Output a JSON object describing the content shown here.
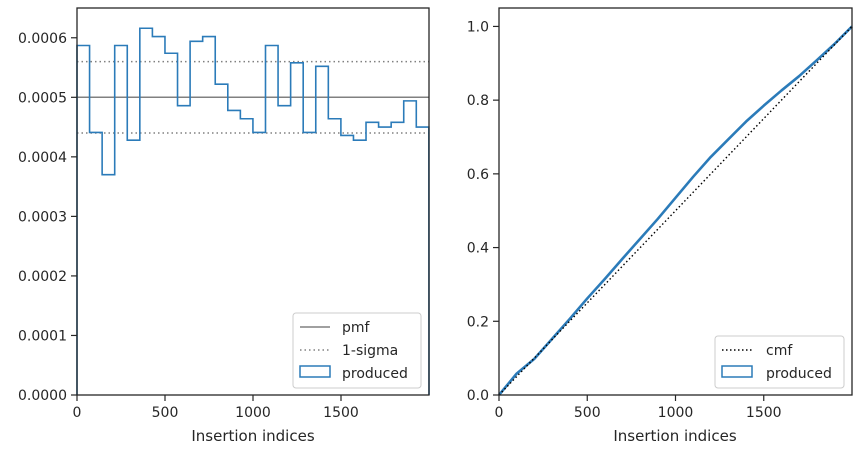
{
  "chart_data": [
    {
      "type": "step",
      "title": "",
      "xlabel": "Insertion indices",
      "ylabel": "",
      "xlim": [
        0,
        2000
      ],
      "ylim": [
        0,
        0.00065
      ],
      "xticks": [
        0,
        500,
        1000,
        1500
      ],
      "xtick_labels": [
        "0",
        "500",
        "1000",
        "1500"
      ],
      "yticks": [
        0,
        0.0001,
        0.0002,
        0.0003,
        0.0004,
        0.0005,
        0.0006
      ],
      "ytick_labels": [
        "0.0000",
        "0.0001",
        "0.0002",
        "0.0003",
        "0.0004",
        "0.0005",
        "0.0006"
      ],
      "bin_width": 71.4,
      "bin_values": [
        0.000587,
        0.000441,
        0.00037,
        0.000587,
        0.000428,
        0.000616,
        0.000602,
        0.000574,
        0.000486,
        0.000594,
        0.000602,
        0.000522,
        0.000478,
        0.000464,
        0.000441,
        0.000587,
        0.000486,
        0.000558,
        0.000441,
        0.000552,
        0.000464,
        0.000436,
        0.000428,
        0.000458,
        0.00045,
        0.000458,
        0.000494,
        0.00045
      ],
      "reference_lines": [
        {
          "name": "pmf",
          "value": 0.0005,
          "style": "solid",
          "color": "#808080"
        },
        {
          "name": "1-sigma",
          "values": [
            0.00056,
            0.00044
          ],
          "style": "dotted",
          "color": "#808080"
        }
      ],
      "series_color": "#2b7bb9",
      "legend": {
        "position": "lower-right",
        "entries": [
          {
            "label": "pmf",
            "style": "solid-line"
          },
          {
            "label": "1-sigma",
            "style": "dotted-line"
          },
          {
            "label": "produced",
            "style": "box"
          }
        ]
      }
    },
    {
      "type": "line",
      "title": "",
      "xlabel": "Insertion indices",
      "ylabel": "",
      "xlim": [
        0,
        2000
      ],
      "ylim": [
        0,
        1.05
      ],
      "xticks": [
        0,
        500,
        1000,
        1500
      ],
      "xtick_labels": [
        "0",
        "500",
        "1000",
        "1500"
      ],
      "yticks": [
        0,
        0.2,
        0.4,
        0.6,
        0.8,
        1.0
      ],
      "ytick_labels": [
        "0.0",
        "0.2",
        "0.4",
        "0.6",
        "0.8",
        "1.0"
      ],
      "series": [
        {
          "name": "cmf",
          "style": "dotted",
          "color": "#000000",
          "x": [
            0,
            2000
          ],
          "y": [
            0,
            1.0
          ]
        },
        {
          "name": "produced",
          "style": "solid",
          "color": "#2b7bb9",
          "x": [
            0,
            100,
            200,
            300,
            400,
            500,
            600,
            700,
            800,
            900,
            1000,
            1100,
            1200,
            1300,
            1400,
            1500,
            1600,
            1700,
            1800,
            1900,
            2000
          ],
          "y": [
            0,
            0.058,
            0.098,
            0.152,
            0.206,
            0.262,
            0.315,
            0.37,
            0.424,
            0.478,
            0.535,
            0.592,
            0.646,
            0.694,
            0.742,
            0.785,
            0.826,
            0.865,
            0.908,
            0.952,
            1.0
          ]
        }
      ],
      "legend": {
        "position": "lower-right",
        "entries": [
          {
            "label": "cmf",
            "style": "dotted-line"
          },
          {
            "label": "produced",
            "style": "box"
          }
        ]
      }
    }
  ]
}
